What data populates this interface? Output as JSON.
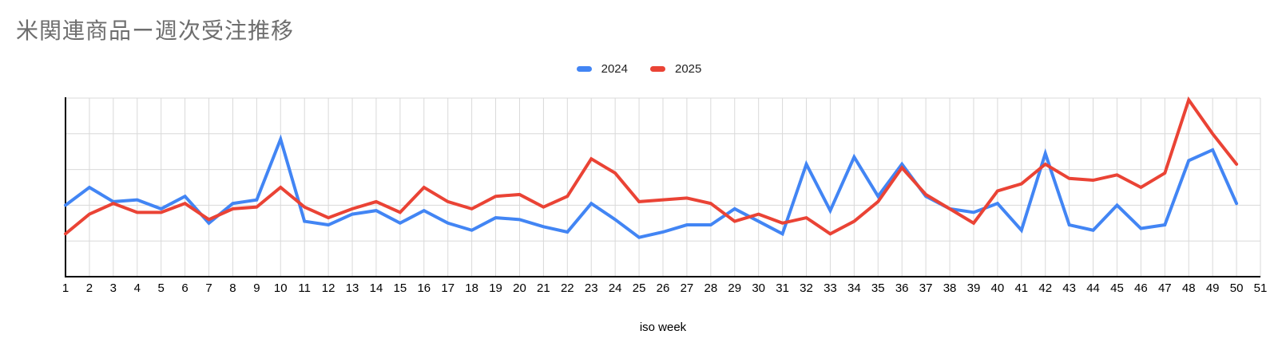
{
  "header": {
    "title": "米関連商品ー週次受注推移",
    "title_color": "#6e6e6e"
  },
  "legend": {
    "items": [
      {
        "label": "2024",
        "color": "#4285F4"
      },
      {
        "label": "2025",
        "color": "#EA4335"
      }
    ]
  },
  "colors": {
    "grid": "#d9d9d9",
    "axis": "#000000",
    "tick_label": "#000000"
  },
  "chart_data": {
    "type": "line",
    "title": "米関連商品ー週次受注推移",
    "xlabel": "iso week",
    "ylabel": "",
    "ylim": [
      0,
      100
    ],
    "y_gridline_step": 20,
    "y_axis_labels_visible": false,
    "grid": true,
    "legend_position": "top-center",
    "x_tick_labels": [
      "1",
      "2",
      "3",
      "4",
      "5",
      "6",
      "7",
      "8",
      "9",
      "10",
      "11",
      "12",
      "13",
      "14",
      "15",
      "16",
      "17",
      "18",
      "19",
      "20",
      "21",
      "22",
      "23",
      "24",
      "25",
      "26",
      "27",
      "28",
      "29",
      "30",
      "31",
      "32",
      "33",
      "34",
      "35",
      "36",
      "37",
      "38",
      "39",
      "40",
      "41",
      "42",
      "43",
      "44",
      "45",
      "46",
      "47",
      "48",
      "49",
      "50",
      "51"
    ],
    "x": [
      1,
      2,
      3,
      4,
      5,
      6,
      7,
      8,
      9,
      10,
      11,
      12,
      13,
      14,
      15,
      16,
      17,
      18,
      19,
      20,
      21,
      22,
      23,
      24,
      25,
      26,
      27,
      28,
      29,
      30,
      31,
      32,
      33,
      34,
      35,
      36,
      37,
      38,
      39,
      40,
      41,
      42,
      43,
      44,
      45,
      46,
      47,
      48,
      49,
      50
    ],
    "series": [
      {
        "name": "2024",
        "color": "#4285F4",
        "values": [
          40,
          50,
          42,
          43,
          38,
          45,
          30,
          41,
          43,
          77,
          31,
          29,
          35,
          37,
          30,
          37,
          30,
          26,
          33,
          32,
          28,
          25,
          41,
          32,
          22,
          25,
          29,
          29,
          38,
          31,
          24,
          63,
          37,
          67,
          45,
          63,
          45,
          38,
          36,
          41,
          26,
          69,
          29,
          26,
          40,
          27,
          29,
          65,
          71,
          41
        ]
      },
      {
        "name": "2025",
        "color": "#EA4335",
        "values": [
          24,
          35,
          41,
          36,
          36,
          41,
          32,
          38,
          39,
          50,
          39,
          33,
          38,
          42,
          36,
          50,
          42,
          38,
          45,
          46,
          39,
          45,
          66,
          58,
          42,
          43,
          44,
          41,
          31,
          35,
          30,
          33,
          24,
          31,
          42,
          61,
          46,
          38,
          30,
          48,
          52,
          63,
          55,
          54,
          57,
          50,
          58,
          99,
          80,
          63
        ]
      }
    ]
  }
}
